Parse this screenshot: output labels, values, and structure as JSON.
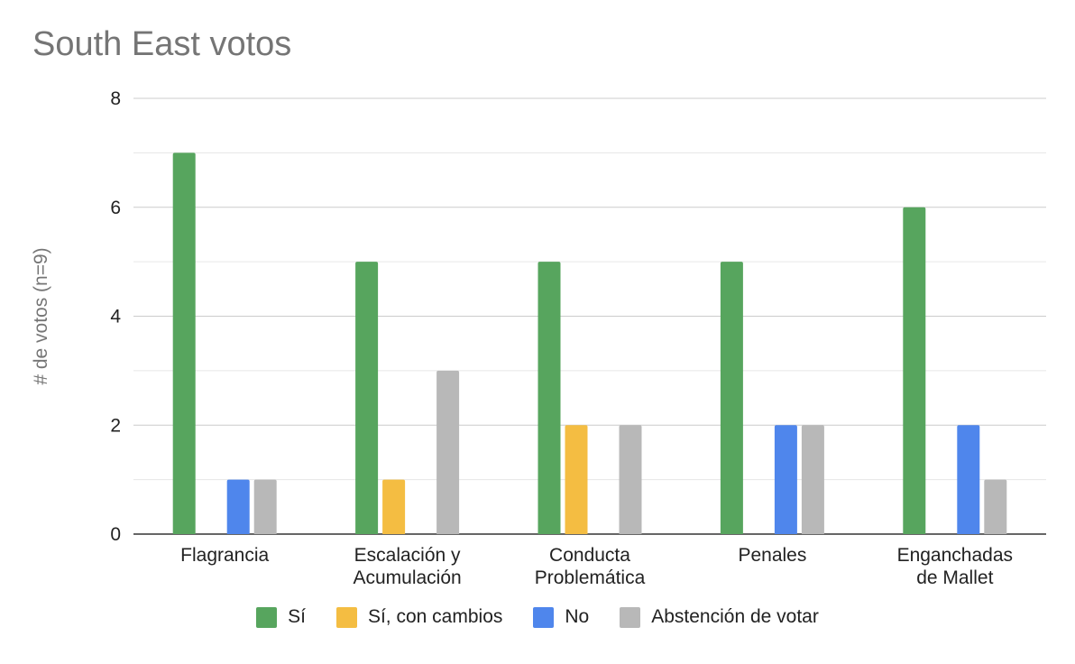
{
  "chart_data": {
    "type": "bar",
    "title": "South East votos",
    "xlabel": "",
    "ylabel": "# de votos (n=9)",
    "ylim": [
      0,
      8
    ],
    "yticks": [
      "0",
      "2",
      "4",
      "6",
      "8"
    ],
    "grid": true,
    "legend_position": "bottom",
    "categories": [
      [
        "Flagrancia"
      ],
      [
        "Escalación y",
        "Acumulación"
      ],
      [
        "Conducta",
        "Problemática"
      ],
      [
        "Penales"
      ],
      [
        "Enganchadas",
        "de Mallet"
      ]
    ],
    "series": [
      {
        "name": "Sí",
        "color": "#57a55e",
        "values": [
          7,
          5,
          5,
          5,
          6
        ]
      },
      {
        "name": "Sí, con cambios",
        "color": "#f4bd42",
        "values": [
          0,
          1,
          2,
          0,
          0
        ]
      },
      {
        "name": "No",
        "color": "#4f86ec",
        "values": [
          1,
          0,
          0,
          2,
          2
        ]
      },
      {
        "name": "Abstención de votar",
        "color": "#b8b8b8",
        "values": [
          1,
          3,
          2,
          2,
          1
        ]
      }
    ]
  }
}
